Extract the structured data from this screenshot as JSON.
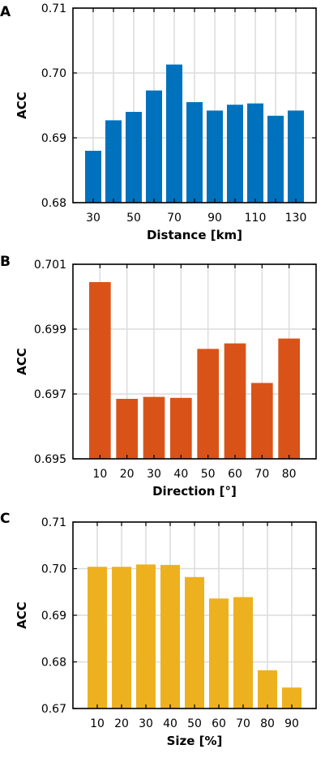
{
  "chart_data": [
    {
      "type": "bar",
      "panel_label": "A",
      "categories": [
        "30",
        "40",
        "50",
        "60",
        "70",
        "80",
        "90",
        "100",
        "110",
        "120",
        "130"
      ],
      "values": [
        0.688,
        0.6927,
        0.694,
        0.6973,
        0.7013,
        0.6955,
        0.6942,
        0.6951,
        0.6953,
        0.6934,
        0.6942
      ],
      "xticks": [
        "30",
        "50",
        "70",
        "90",
        "110",
        "130"
      ],
      "yticks": [
        "0.68",
        "0.69",
        "0.70",
        "0.71"
      ],
      "ylim": [
        0.68,
        0.71
      ],
      "xlabel": "Distance [km]",
      "ylabel": "ACC",
      "color": "#0072BD",
      "grid": true
    },
    {
      "type": "bar",
      "panel_label": "B",
      "categories": [
        "10",
        "20",
        "30",
        "40",
        "50",
        "60",
        "70",
        "80"
      ],
      "values": [
        0.70045,
        0.69685,
        0.69691,
        0.69688,
        0.69839,
        0.69856,
        0.69734,
        0.69871
      ],
      "xticks": [
        "10",
        "20",
        "30",
        "40",
        "50",
        "60",
        "70",
        "80"
      ],
      "yticks": [
        "0.695",
        "0.697",
        "0.699",
        "0.701"
      ],
      "ylim": [
        0.695,
        0.701
      ],
      "xlabel": "Direction [°]",
      "ylabel": "ACC",
      "color": "#D95319",
      "grid": true
    },
    {
      "type": "bar",
      "panel_label": "C",
      "categories": [
        "10",
        "20",
        "30",
        "40",
        "50",
        "60",
        "70",
        "80",
        "90"
      ],
      "values": [
        0.7004,
        0.7004,
        0.7009,
        0.7008,
        0.6982,
        0.6936,
        0.6939,
        0.6782,
        0.6745
      ],
      "xticks": [
        "10",
        "20",
        "30",
        "40",
        "50",
        "60",
        "70",
        "80",
        "90"
      ],
      "yticks": [
        "0.67",
        "0.68",
        "0.69",
        "0.70",
        "0.71"
      ],
      "ylim": [
        0.67,
        0.71
      ],
      "xlabel": "Size [%]",
      "ylabel": "ACC",
      "color": "#EDB120",
      "grid": true
    }
  ]
}
